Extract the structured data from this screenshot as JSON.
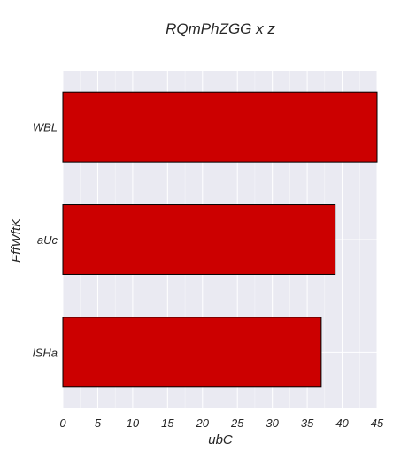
{
  "chart_data": {
    "type": "bar",
    "orientation": "horizontal",
    "title": "RQmPhZGG x z",
    "xlabel": "ubC",
    "ylabel": "FffWftK",
    "categories": [
      "WBL",
      "aUc",
      "lSHa"
    ],
    "values": [
      45,
      39,
      37
    ],
    "xlim": [
      0,
      45
    ],
    "xticks": [
      0,
      5,
      10,
      15,
      20,
      25,
      30,
      35,
      40,
      45
    ],
    "grid": true,
    "legend": "none",
    "colors": {
      "bar": "#cc0000",
      "bar_edge": "#000000",
      "plot_background": "#eaeaf2",
      "grid": "#ffffff",
      "text": "#262626"
    }
  }
}
